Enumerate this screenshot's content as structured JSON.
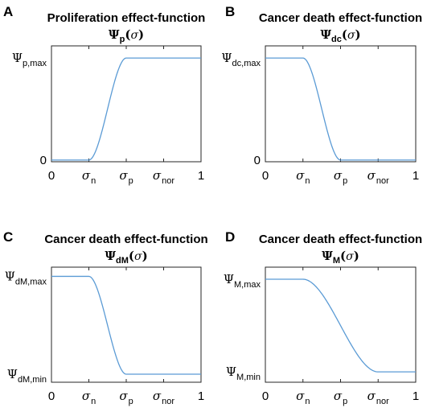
{
  "colors": {
    "curve": "#5b9bd5",
    "axis": "#262626"
  },
  "chart_data": [
    {
      "panel": "A",
      "type": "line",
      "title": "Proliferation effect-function",
      "subtitle": {
        "symbol": "Ψ",
        "subscript": "p",
        "arg": "(σ)"
      },
      "xlim": [
        0,
        1
      ],
      "ylim": [
        0,
        1
      ],
      "xticks": [
        {
          "x": 0,
          "symbol": "",
          "subscript": "",
          "plain": "0"
        },
        {
          "x": 0.25,
          "symbol": "σ",
          "subscript": "n",
          "plain": ""
        },
        {
          "x": 0.5,
          "symbol": "σ",
          "subscript": "p",
          "plain": ""
        },
        {
          "x": 0.75,
          "symbol": "σ",
          "subscript": "nor",
          "plain": ""
        },
        {
          "x": 1,
          "symbol": "",
          "subscript": "",
          "plain": "1"
        }
      ],
      "yticks": [
        {
          "y": 0,
          "symbol": "",
          "subscript": "",
          "plain": "0"
        },
        {
          "y": 1,
          "symbol": "Ψ",
          "subscript": "p,max",
          "plain": ""
        }
      ],
      "curve": {
        "shape": "smooth-step-up",
        "x_start": 0.25,
        "x_end": 0.5,
        "y_low": 0,
        "y_high": 1
      }
    },
    {
      "panel": "B",
      "type": "line",
      "title": "Cancer death effect-function",
      "subtitle": {
        "symbol": "Ψ",
        "subscript": "dc",
        "arg": "(σ)"
      },
      "xlim": [
        0,
        1
      ],
      "ylim": [
        0,
        1
      ],
      "xticks": [
        {
          "x": 0,
          "symbol": "",
          "subscript": "",
          "plain": "0"
        },
        {
          "x": 0.25,
          "symbol": "σ",
          "subscript": "n",
          "plain": ""
        },
        {
          "x": 0.5,
          "symbol": "σ",
          "subscript": "p",
          "plain": ""
        },
        {
          "x": 0.75,
          "symbol": "σ",
          "subscript": "nor",
          "plain": ""
        },
        {
          "x": 1,
          "symbol": "",
          "subscript": "",
          "plain": "1"
        }
      ],
      "yticks": [
        {
          "y": 0,
          "symbol": "",
          "subscript": "",
          "plain": "0"
        },
        {
          "y": 1,
          "symbol": "Ψ",
          "subscript": "dc,max",
          "plain": ""
        }
      ],
      "curve": {
        "shape": "smooth-step-down",
        "x_start": 0.25,
        "x_end": 0.5,
        "y_low": 0,
        "y_high": 1
      }
    },
    {
      "panel": "C",
      "type": "line",
      "title": "Cancer death effect-function",
      "subtitle": {
        "symbol": "Ψ",
        "subscript": "dM",
        "arg": "(σ)"
      },
      "xlim": [
        0,
        1
      ],
      "ylim": [
        0,
        1
      ],
      "xticks": [
        {
          "x": 0,
          "symbol": "",
          "subscript": "",
          "plain": "0"
        },
        {
          "x": 0.25,
          "symbol": "σ",
          "subscript": "n",
          "plain": ""
        },
        {
          "x": 0.5,
          "symbol": "σ",
          "subscript": "p",
          "plain": ""
        },
        {
          "x": 0.75,
          "symbol": "σ",
          "subscript": "nor",
          "plain": ""
        },
        {
          "x": 1,
          "symbol": "",
          "subscript": "",
          "plain": "1"
        }
      ],
      "yticks": [
        {
          "y": 0,
          "symbol": "Ψ",
          "subscript": "dM,min",
          "plain": ""
        },
        {
          "y": 1,
          "symbol": "Ψ",
          "subscript": "dM,max",
          "plain": ""
        }
      ],
      "curve": {
        "shape": "smooth-step-down",
        "x_start": 0.25,
        "x_end": 0.5,
        "y_low": 0,
        "y_high": 1
      }
    },
    {
      "panel": "D",
      "type": "line",
      "title": "Cancer death effect-function",
      "subtitle": {
        "symbol": "Ψ",
        "subscript": "M",
        "arg": "(σ)"
      },
      "xlim": [
        0,
        1
      ],
      "ylim": [
        0,
        1
      ],
      "xticks": [
        {
          "x": 0,
          "symbol": "",
          "subscript": "",
          "plain": "0"
        },
        {
          "x": 0.25,
          "symbol": "σ",
          "subscript": "n",
          "plain": ""
        },
        {
          "x": 0.5,
          "symbol": "σ",
          "subscript": "p",
          "plain": ""
        },
        {
          "x": 0.75,
          "symbol": "σ",
          "subscript": "nor",
          "plain": ""
        },
        {
          "x": 1,
          "symbol": "",
          "subscript": "",
          "plain": "1"
        }
      ],
      "yticks": [
        {
          "y": 0,
          "symbol": "Ψ",
          "subscript": "M,min",
          "plain": ""
        },
        {
          "y": 1,
          "symbol": "Ψ",
          "subscript": "M,max",
          "plain": ""
        }
      ],
      "curve": {
        "shape": "smooth-step-down",
        "x_start": 0.25,
        "x_end": 0.75,
        "y_low": 0,
        "y_high": 1
      }
    }
  ]
}
